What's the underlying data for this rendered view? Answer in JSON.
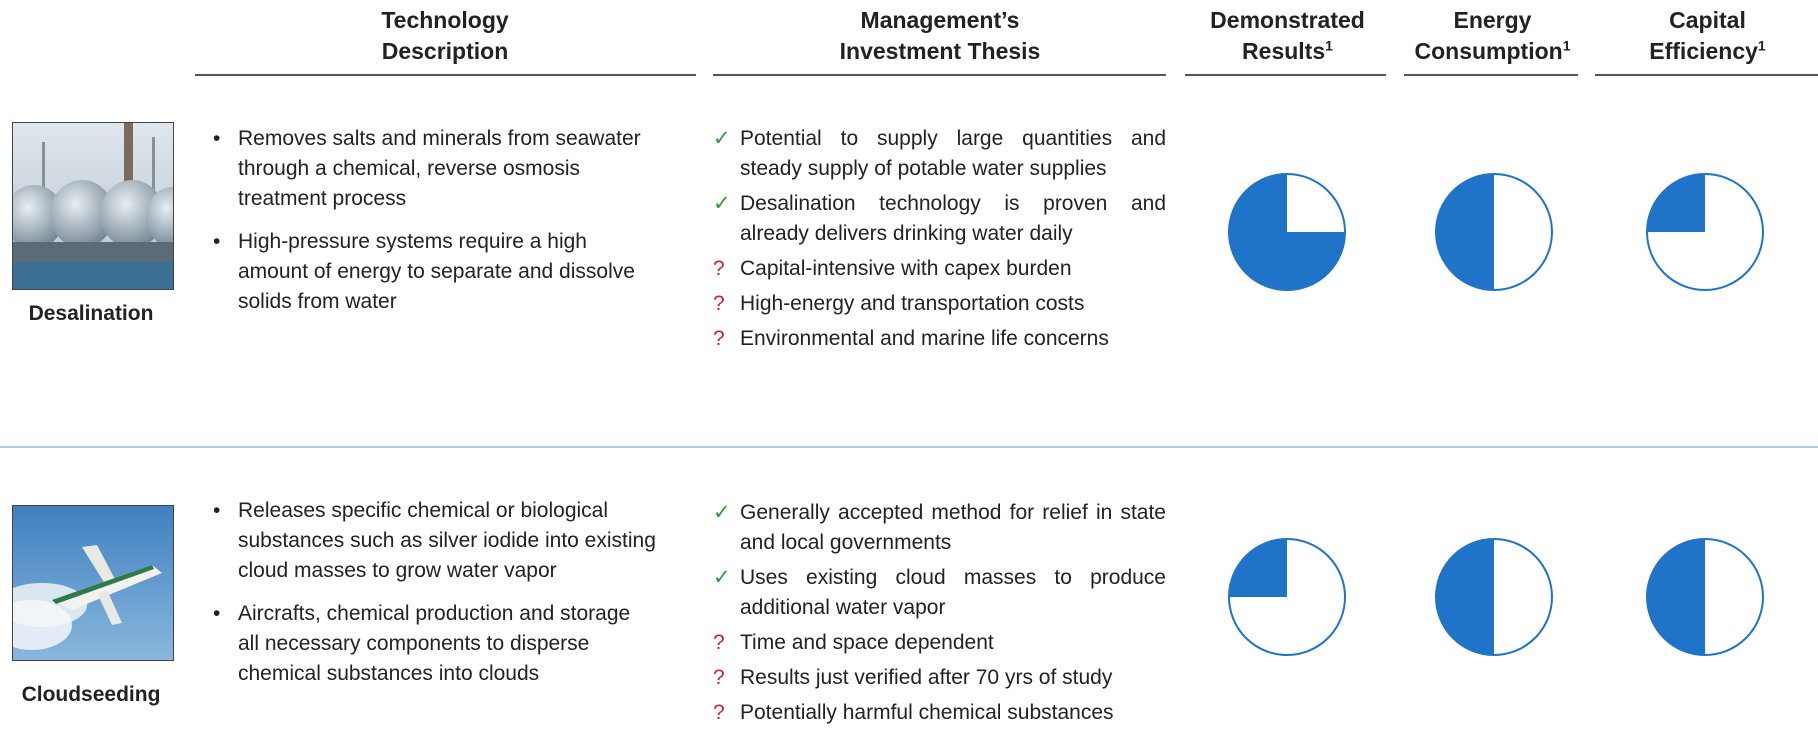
{
  "columns": [
    {
      "label": "Technology Description"
    },
    {
      "label": "Management’s Investment Thesis"
    },
    {
      "label": "Demonstrated Results",
      "note": "1"
    },
    {
      "label": "Energy Consumption",
      "note": "1"
    },
    {
      "label": "Capital Efficiency",
      "note": "1"
    }
  ],
  "rows": [
    {
      "name": "Desalination",
      "description": [
        "Removes salts and minerals from seawater through a chemical, reverse osmosis treatment process",
        "High-pressure systems require a high amount of energy to separate and dissolve solids from water"
      ],
      "thesis": [
        {
          "marker": "✓",
          "text": "Potential to supply large quantities and steady supply of potable water supplies"
        },
        {
          "marker": "✓",
          "text": "Desalination technology is proven and already delivers drinking water daily"
        },
        {
          "marker": "?",
          "text": "Capital-intensive with capex burden"
        },
        {
          "marker": "?",
          "text": "High-energy and transportation costs"
        },
        {
          "marker": "?",
          "text": "Environmental and marine life concerns"
        }
      ],
      "ratings": [
        0.75,
        0.5,
        0.25
      ]
    },
    {
      "name": "Cloudseeding",
      "description": [
        "Releases specific chemical or biological substances such as silver iodide into existing cloud masses to grow water vapor",
        "Aircrafts, chemical production and storage all necessary components to disperse chemical substances into clouds"
      ],
      "thesis": [
        {
          "marker": "✓",
          "text": "Generally accepted method for relief in state and local governments"
        },
        {
          "marker": "✓",
          "text": "Uses existing cloud masses to produce additional water vapor"
        },
        {
          "marker": "?",
          "text": "Time and space dependent"
        },
        {
          "marker": "?",
          "text": "Results just verified after 70 yrs of study"
        },
        {
          "marker": "?",
          "text": "Potentially harmful chemical substances"
        }
      ],
      "ratings": [
        0.25,
        0.5,
        0.5
      ]
    }
  ]
}
